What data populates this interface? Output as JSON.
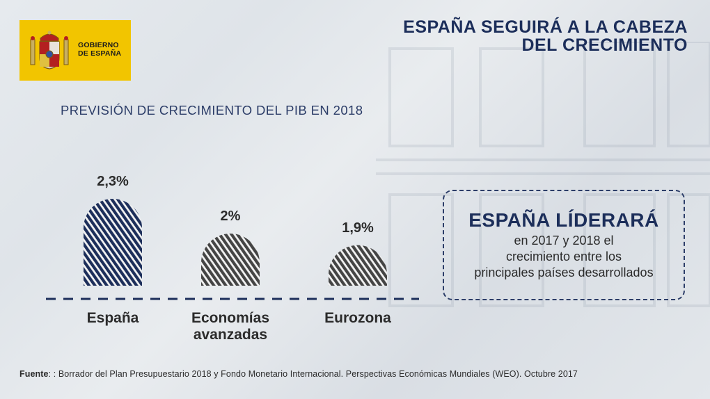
{
  "header": {
    "logo_text_line1": "GOBIERNO",
    "logo_text_line2": "DE ESPAÑA",
    "title_line1": "ESPAÑA SEGUIRÁ A LA CABEZA",
    "title_line2": "DEL CRECIMIENTO"
  },
  "chart_data": {
    "type": "bar",
    "title": "PREVISIÓN DE CRECIMIENTO DEL PIB EN 2018",
    "categories": [
      "España",
      "Economías avanzadas",
      "Eurozona"
    ],
    "values": [
      2.3,
      2.0,
      1.9
    ],
    "value_labels": [
      "2,3%",
      "2%",
      "1,9%"
    ],
    "colors": [
      "#1c2e5a",
      "#444444",
      "#444444"
    ],
    "grid": false,
    "legend": "none"
  },
  "callout": {
    "headline": "ESPAÑA LÍDERARÁ",
    "body_line1": "en 2017 y 2018 el",
    "body_line2": "crecimiento entre los",
    "body_line3": "principales países desarrollados"
  },
  "footer": {
    "source_label": "Fuente",
    "source_text": ": : Borrador del Plan Presupuestario 2018 y Fondo Monetario Internacional. Perspectivas Económicas Mundiales (WEO).  Octubre 2017"
  }
}
